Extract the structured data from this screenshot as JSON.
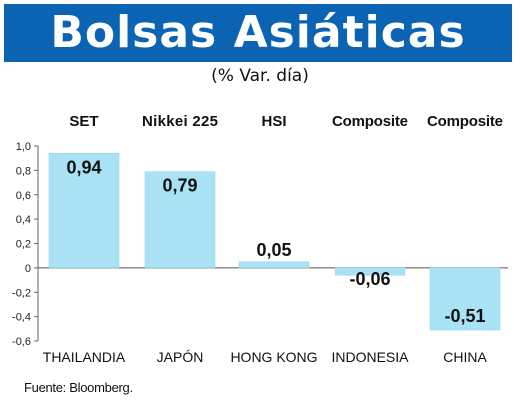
{
  "header": {
    "title": "Bolsas Asiáticas",
    "subtitle": "(% Var. día)"
  },
  "source": "Fuente: Bloomberg.",
  "colors": {
    "banner": "#0a63b3",
    "bar": "#a8e2f4",
    "bar_edge": "#8fd3ea"
  },
  "chart_data": {
    "type": "bar",
    "indices": [
      "SET",
      "Nikkei 225",
      "HSI",
      "Composite",
      "Composite"
    ],
    "categories": [
      "THAILANDIA",
      "JAPÓN",
      "HONG KONG",
      "INDONESIA",
      "CHINA"
    ],
    "values": [
      0.94,
      0.79,
      0.05,
      -0.06,
      -0.51
    ],
    "value_labels": [
      "0,94",
      "0,79",
      "0,05",
      "-0,06",
      "-0,51"
    ],
    "ylim": [
      -0.6,
      1.0
    ],
    "yticks": [
      -0.6,
      -0.4,
      -0.2,
      0,
      0.2,
      0.4,
      0.6,
      0.8,
      1.0
    ],
    "ytick_labels": [
      "-0,6",
      "-0,4",
      "-0,2",
      "0",
      "0,2",
      "0,4",
      "0,6",
      "0,8",
      "1,0"
    ],
    "grid": false,
    "legend": "none"
  }
}
